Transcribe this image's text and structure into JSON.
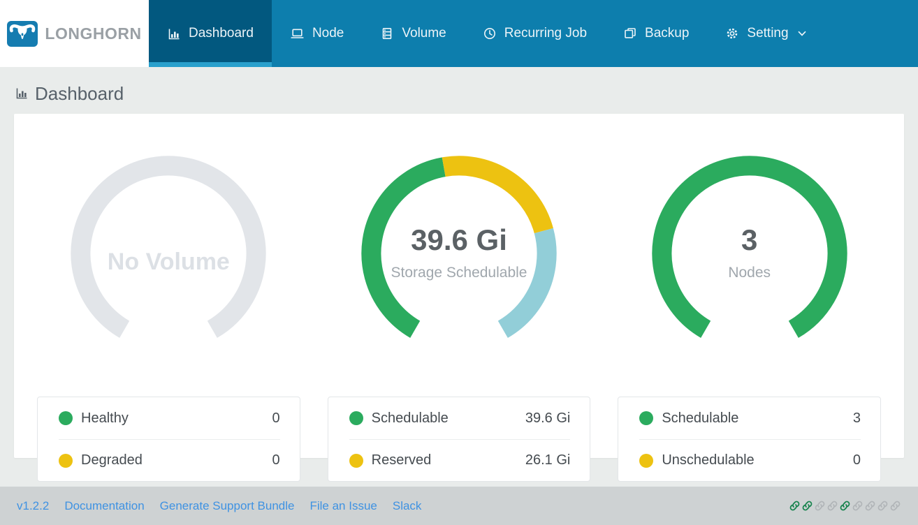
{
  "brand": {
    "name": "LONGHORN"
  },
  "nav": {
    "items": [
      {
        "label": "Dashboard",
        "icon": "bar-chart-icon",
        "active": true,
        "dropdown": false
      },
      {
        "label": "Node",
        "icon": "laptop-icon",
        "active": false,
        "dropdown": false
      },
      {
        "label": "Volume",
        "icon": "database-icon",
        "active": false,
        "dropdown": false
      },
      {
        "label": "Recurring Job",
        "icon": "clock-icon",
        "active": false,
        "dropdown": false
      },
      {
        "label": "Backup",
        "icon": "copy-icon",
        "active": false,
        "dropdown": false
      },
      {
        "label": "Setting",
        "icon": "gear-icon",
        "active": false,
        "dropdown": true
      }
    ]
  },
  "page": {
    "title": "Dashboard"
  },
  "colors": {
    "nav_bg": "#0d7ead",
    "nav_active_bg": "#02587f",
    "nav_active_underline": "#29a0cc",
    "green": "#2bab5e",
    "yellow": "#edc211",
    "light_blue": "#92ced8",
    "gauge_gray": "#e2e5e9",
    "link_blue": "#3f92e2",
    "chain_green": "#16834d",
    "chain_gray": "#b1b5b8"
  },
  "chart_data": [
    {
      "type": "gauge",
      "name": "volume-health-gauge",
      "center_primary": "No Volume",
      "center_secondary": "",
      "arc_total_deg": 300,
      "gap_position": "bottom",
      "segments": [
        {
          "label": "",
          "color": "#e2e5e9",
          "arc_deg": 300
        }
      ],
      "legend": [
        {
          "label": "Healthy",
          "color": "#2bab5e",
          "value": "0"
        },
        {
          "label": "Degraded",
          "color": "#edc211",
          "value": "0"
        }
      ]
    },
    {
      "type": "gauge",
      "name": "storage-schedulable-gauge",
      "center_primary": "39.6 Gi",
      "center_secondary": "Storage Schedulable",
      "arc_total_deg": 300,
      "gap_position": "bottom",
      "segments": [
        {
          "label": "Schedulable",
          "color": "#2bab5e",
          "arc_deg": 140
        },
        {
          "label": "Reserved",
          "color": "#edc211",
          "arc_deg": 85
        },
        {
          "label": "",
          "color": "#92ced8",
          "arc_deg": 75
        }
      ],
      "legend": [
        {
          "label": "Schedulable",
          "color": "#2bab5e",
          "value": "39.6 Gi"
        },
        {
          "label": "Reserved",
          "color": "#edc211",
          "value": "26.1 Gi"
        }
      ]
    },
    {
      "type": "gauge",
      "name": "nodes-gauge",
      "center_primary": "3",
      "center_secondary": "Nodes",
      "arc_total_deg": 300,
      "gap_position": "bottom",
      "segments": [
        {
          "label": "Schedulable",
          "color": "#2bab5e",
          "arc_deg": 300
        }
      ],
      "legend": [
        {
          "label": "Schedulable",
          "color": "#2bab5e",
          "value": "3"
        },
        {
          "label": "Unschedulable",
          "color": "#edc211",
          "value": "0"
        }
      ]
    }
  ],
  "footer": {
    "version": "v1.2.2",
    "links": [
      "Documentation",
      "Generate Support Bundle",
      "File an Issue",
      "Slack"
    ],
    "node_link_statuses": [
      "green",
      "green",
      "gray",
      "gray",
      "green",
      "gray",
      "gray",
      "gray",
      "gray"
    ]
  }
}
